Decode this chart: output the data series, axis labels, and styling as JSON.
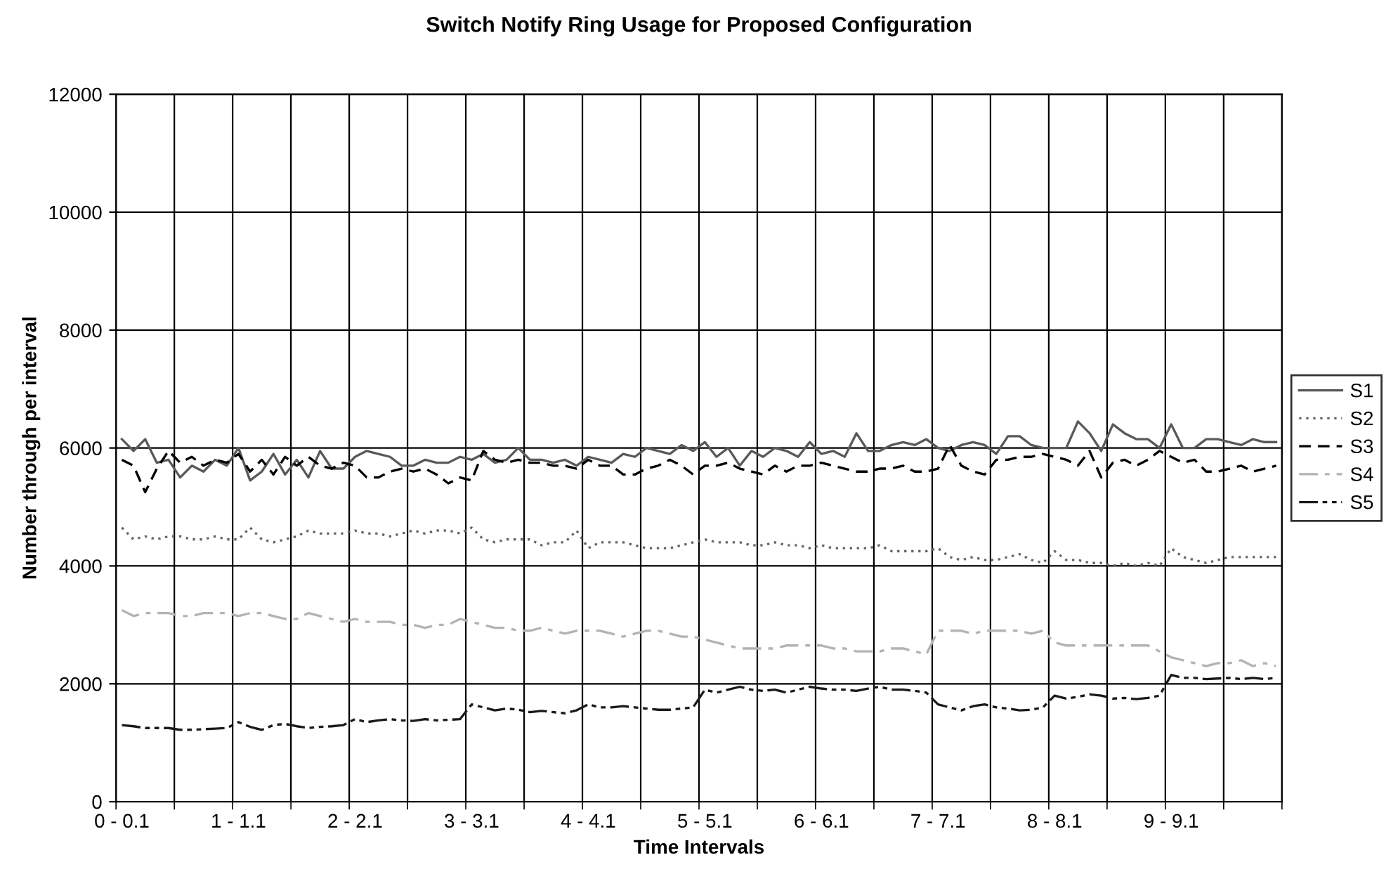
{
  "chart_data": {
    "type": "line",
    "title": "Switch Notify Ring Usage for Proposed Configuration",
    "xlabel": "Time Intervals",
    "ylabel": "Number through per interval",
    "categories": [
      "0 - 0.1",
      null,
      null,
      null,
      null,
      null,
      null,
      null,
      null,
      null,
      "1 - 1.1",
      null,
      null,
      null,
      null,
      null,
      null,
      null,
      null,
      null,
      "2 - 2.1",
      null,
      null,
      null,
      null,
      null,
      null,
      null,
      null,
      null,
      "3 - 3.1",
      null,
      null,
      null,
      null,
      null,
      null,
      null,
      null,
      null,
      "4 - 4.1",
      null,
      null,
      null,
      null,
      null,
      null,
      null,
      null,
      null,
      "5 - 5.1",
      null,
      null,
      null,
      null,
      null,
      null,
      null,
      null,
      null,
      "6 - 6.1",
      null,
      null,
      null,
      null,
      null,
      null,
      null,
      null,
      null,
      "7 - 7.1",
      null,
      null,
      null,
      null,
      null,
      null,
      null,
      null,
      null,
      "8 - 8.1",
      null,
      null,
      null,
      null,
      null,
      null,
      null,
      null,
      null,
      "9 - 9.1",
      null,
      null,
      null,
      null,
      null,
      null,
      null,
      null,
      null
    ],
    "series": [
      {
        "name": "S1",
        "color": "#595959",
        "line_style": "solid",
        "values": [
          6150,
          5950,
          6150,
          5750,
          5800,
          5500,
          5700,
          5600,
          5800,
          5700,
          6000,
          5450,
          5600,
          5900,
          5550,
          5800,
          5500,
          5950,
          5650,
          5650,
          5850,
          5950,
          5900,
          5850,
          5700,
          5700,
          5800,
          5750,
          5750,
          5850,
          5800,
          5900,
          5750,
          5800,
          6000,
          5800,
          5800,
          5750,
          5800,
          5700,
          5850,
          5800,
          5750,
          5900,
          5850,
          6000,
          5950,
          5900,
          6050,
          5950,
          6100,
          5850,
          6000,
          5700,
          5950,
          5850,
          6000,
          5950,
          5850,
          6100,
          5900,
          5950,
          5850,
          6250,
          5950,
          5950,
          6050,
          6100,
          6050,
          6150,
          6000,
          5950,
          6050,
          6100,
          6050,
          5900,
          6200,
          6200,
          6050,
          6000,
          6000,
          6000,
          6450,
          6250,
          5950,
          6400,
          6250,
          6150,
          6150,
          6000,
          6400,
          6000,
          6000,
          6150,
          6150,
          6100,
          6050,
          6150,
          6100,
          6100
        ]
      },
      {
        "name": "S2",
        "color": "#666666",
        "line_style": "dotted",
        "values": [
          4650,
          4450,
          4500,
          4450,
          4500,
          4500,
          4450,
          4450,
          4500,
          4450,
          4450,
          4650,
          4450,
          4400,
          4450,
          4500,
          4600,
          4550,
          4550,
          4550,
          4600,
          4550,
          4550,
          4500,
          4550,
          4600,
          4550,
          4600,
          4600,
          4550,
          4650,
          4450,
          4400,
          4450,
          4450,
          4450,
          4350,
          4400,
          4400,
          4600,
          4300,
          4400,
          4400,
          4400,
          4350,
          4300,
          4300,
          4300,
          4350,
          4400,
          4450,
          4400,
          4400,
          4400,
          4350,
          4350,
          4400,
          4350,
          4350,
          4300,
          4350,
          4300,
          4300,
          4300,
          4300,
          4350,
          4250,
          4250,
          4250,
          4250,
          4300,
          4150,
          4100,
          4150,
          4100,
          4100,
          4150,
          4200,
          4100,
          4050,
          4250,
          4100,
          4100,
          4050,
          4050,
          4000,
          4050,
          4000,
          4050,
          4000,
          4300,
          4150,
          4100,
          4050,
          4100,
          4150,
          4150,
          4150,
          4150,
          4150
        ]
      },
      {
        "name": "S3",
        "color": "#000000",
        "line_style": "dashed",
        "values": [
          5800,
          5700,
          5250,
          5650,
          5950,
          5750,
          5850,
          5700,
          5800,
          5750,
          5900,
          5600,
          5800,
          5550,
          5850,
          5700,
          5850,
          5700,
          5650,
          5750,
          5700,
          5500,
          5500,
          5600,
          5650,
          5600,
          5650,
          5550,
          5400,
          5500,
          5450,
          5950,
          5800,
          5750,
          5800,
          5750,
          5750,
          5700,
          5700,
          5650,
          5800,
          5700,
          5700,
          5550,
          5550,
          5650,
          5700,
          5800,
          5700,
          5550,
          5700,
          5700,
          5750,
          5650,
          5600,
          5550,
          5700,
          5600,
          5700,
          5700,
          5750,
          5700,
          5650,
          5600,
          5600,
          5650,
          5650,
          5700,
          5600,
          5600,
          5650,
          6050,
          5700,
          5600,
          5550,
          5800,
          5800,
          5850,
          5850,
          5900,
          5850,
          5800,
          5700,
          5950,
          5500,
          5750,
          5800,
          5700,
          5800,
          5950,
          5850,
          5750,
          5800,
          5600,
          5600,
          5650,
          5700,
          5600,
          5650,
          5700
        ]
      },
      {
        "name": "S4",
        "color": "#b3b3b3",
        "line_style": "dashdot",
        "values": [
          3250,
          3150,
          3200,
          3200,
          3200,
          3150,
          3150,
          3200,
          3200,
          3200,
          3150,
          3200,
          3200,
          3150,
          3100,
          3100,
          3200,
          3150,
          3100,
          3050,
          3100,
          3050,
          3050,
          3050,
          3000,
          3000,
          2950,
          3000,
          3000,
          3100,
          3050,
          3000,
          2950,
          2950,
          2900,
          2900,
          2950,
          2900,
          2850,
          2900,
          2900,
          2900,
          2850,
          2800,
          2850,
          2900,
          2900,
          2850,
          2800,
          2800,
          2750,
          2700,
          2650,
          2600,
          2600,
          2600,
          2600,
          2650,
          2650,
          2650,
          2650,
          2600,
          2600,
          2550,
          2550,
          2550,
          2600,
          2600,
          2550,
          2500,
          2900,
          2900,
          2900,
          2850,
          2900,
          2900,
          2900,
          2900,
          2850,
          2900,
          2700,
          2650,
          2650,
          2650,
          2650,
          2650,
          2650,
          2650,
          2650,
          2550,
          2450,
          2400,
          2350,
          2300,
          2350,
          2350,
          2400,
          2300,
          2350,
          2300
        ]
      },
      {
        "name": "S5",
        "color": "#1a1a1a",
        "line_style": "dashdotdot",
        "values": [
          1300,
          1280,
          1250,
          1250,
          1250,
          1220,
          1220,
          1230,
          1240,
          1250,
          1350,
          1270,
          1220,
          1300,
          1320,
          1280,
          1250,
          1270,
          1280,
          1300,
          1400,
          1350,
          1380,
          1400,
          1380,
          1370,
          1400,
          1380,
          1390,
          1400,
          1650,
          1600,
          1550,
          1580,
          1560,
          1520,
          1540,
          1520,
          1500,
          1550,
          1650,
          1600,
          1600,
          1620,
          1600,
          1580,
          1560,
          1560,
          1580,
          1600,
          1900,
          1850,
          1900,
          1950,
          1900,
          1880,
          1900,
          1850,
          1900,
          1950,
          1920,
          1900,
          1900,
          1880,
          1920,
          1950,
          1900,
          1900,
          1880,
          1850,
          1650,
          1600,
          1550,
          1620,
          1650,
          1600,
          1580,
          1550,
          1560,
          1600,
          1800,
          1750,
          1780,
          1820,
          1800,
          1750,
          1760,
          1740,
          1760,
          1800,
          2150,
          2100,
          2100,
          2080,
          2090,
          2100,
          2080,
          2100,
          2080,
          2100
        ]
      }
    ],
    "ylim": [
      0,
      12000
    ],
    "yticks": [
      0,
      2000,
      4000,
      6000,
      8000,
      10000,
      12000
    ],
    "grid": true,
    "legend": "right",
    "marker": "none"
  }
}
